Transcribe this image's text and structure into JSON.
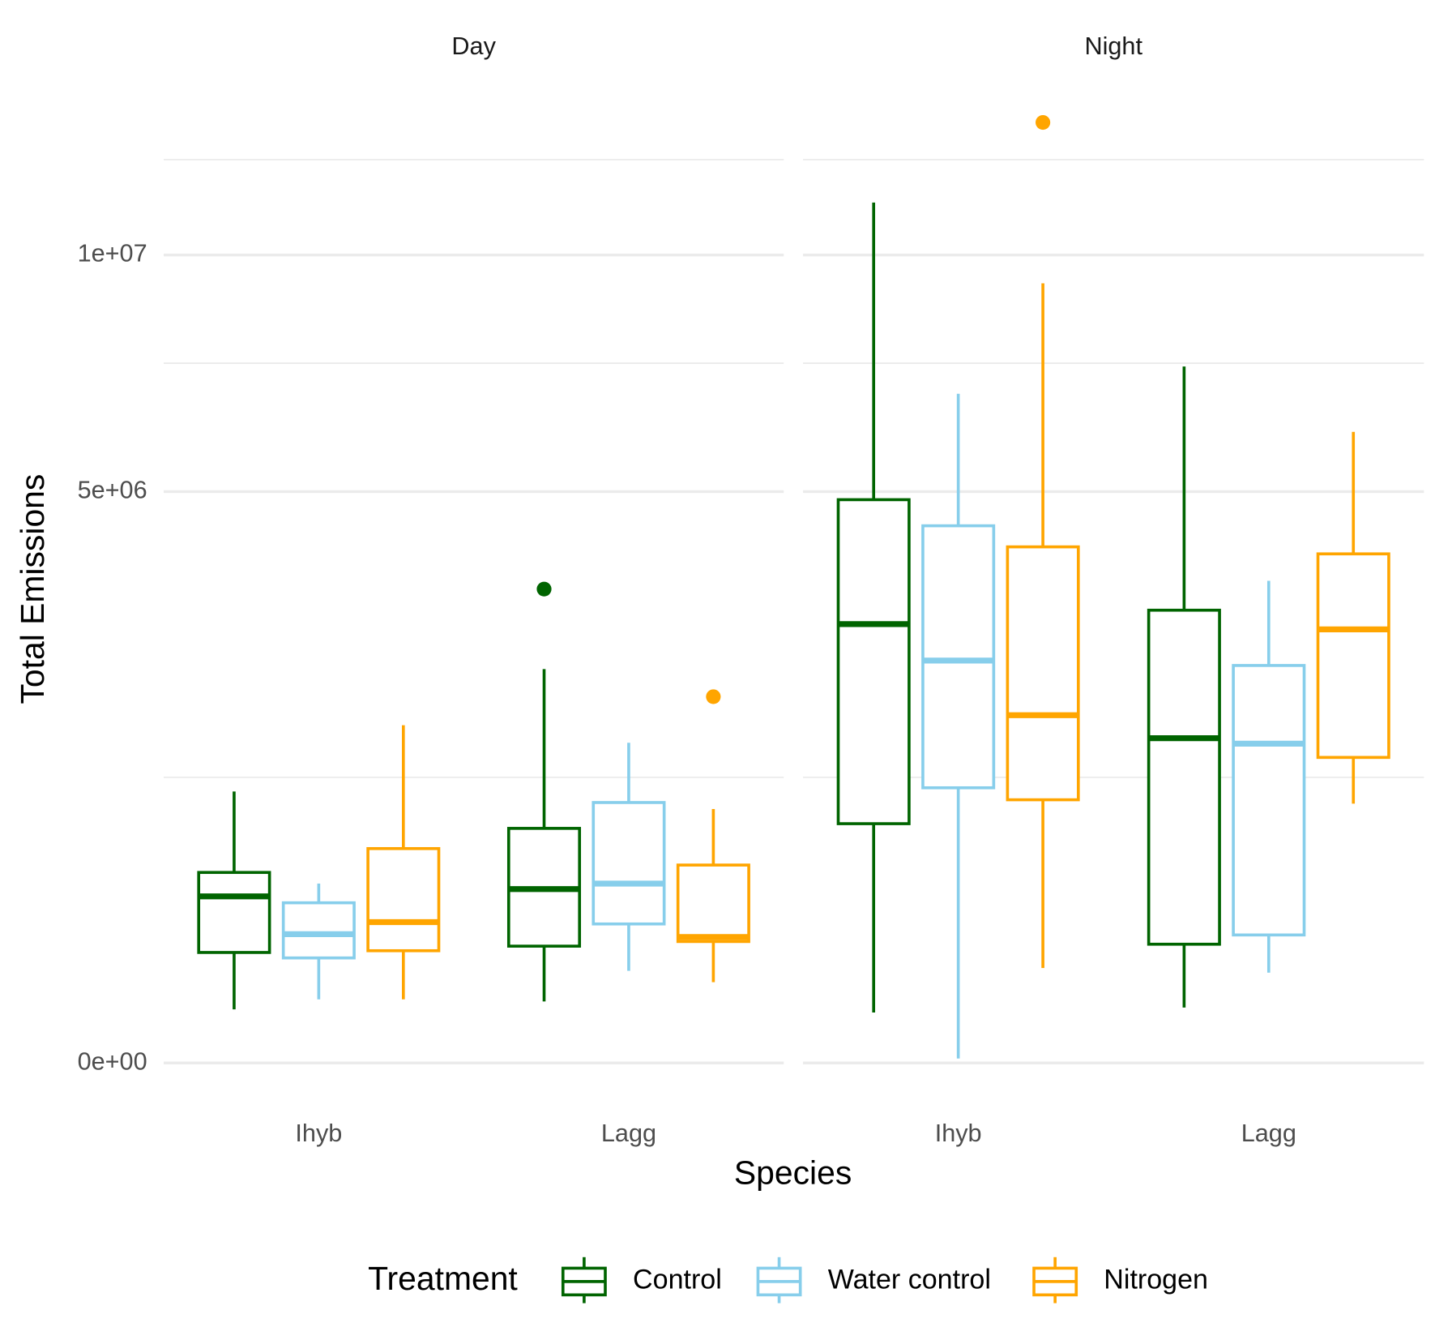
{
  "chart_data": {
    "type": "boxplot",
    "y_label": "Total Emissions",
    "x_label": "Species",
    "legend_title": "Treatment",
    "y_scale": "sqrt",
    "ylim": [
      0,
      13550000
    ],
    "yticks": [
      {
        "value": 0,
        "label": "0e+00"
      },
      {
        "value": 5000000,
        "label": "5e+06"
      },
      {
        "value": 10000000,
        "label": "1e+07"
      }
    ],
    "minor_yticks": [
      1250000,
      7500000,
      12500000
    ],
    "grid": true,
    "legend_position": "bottom",
    "categories": [
      "Ihyb",
      "Lagg"
    ],
    "series": [
      {
        "name": "Control",
        "color": "#006400"
      },
      {
        "name": "Water control",
        "color": "#87CEEB"
      },
      {
        "name": "Nitrogen",
        "color": "#FFA500"
      }
    ],
    "panels": [
      {
        "title": "Day",
        "data": [
          [
            {
              "min": 44000,
              "q1": 187000,
              "median": 425000,
              "q3": 556000,
              "max": 1129000
            },
            {
              "min": 58000,
              "q1": 209000,
              "median": 463000,
              "q3": 843000,
              "max": 2376000,
              "outliers": [
                3440000
              ]
            }
          ],
          [
            {
              "min": 62000,
              "q1": 169000,
              "median": 254000,
              "q3": 393000,
              "max": 493000
            },
            {
              "min": 130000,
              "q1": 296000,
              "median": 493000,
              "q3": 1039000,
              "max": 1571000
            }
          ],
          [
            {
              "min": 62000,
              "q1": 193000,
              "median": 304000,
              "q3": 704000,
              "max": 1747000
            },
            {
              "min": 100000,
              "q1": 226000,
              "median": 243000,
              "q3": 600000,
              "max": 988000,
              "outliers": [
                2055000
              ]
            }
          ]
        ]
      },
      {
        "title": "Night",
        "data": [
          [
            {
              "min": 39000,
              "q1": 877000,
              "median": 2950000,
              "q3": 4860000,
              "max": 11340000
            },
            {
              "min": 47000,
              "q1": 216000,
              "median": 1616000,
              "q3": 3140000,
              "max": 7430000
            }
          ],
          [
            {
              "min": 300,
              "q1": 1160000,
              "median": 2480000,
              "q3": 4420000,
              "max": 6860000
            },
            {
              "min": 125000,
              "q1": 251000,
              "median": 1562000,
              "q3": 2420000,
              "max": 3560000
            }
          ],
          [
            {
              "min": 138000,
              "q1": 1061000,
              "median": 1853000,
              "q3": 4080000,
              "max": 9310000,
              "outliers": [
                13550000
              ]
            },
            {
              "min": 1030000,
              "q1": 1430000,
              "median": 2880000,
              "q3": 3970000,
              "max": 6100000
            }
          ]
        ]
      }
    ]
  }
}
